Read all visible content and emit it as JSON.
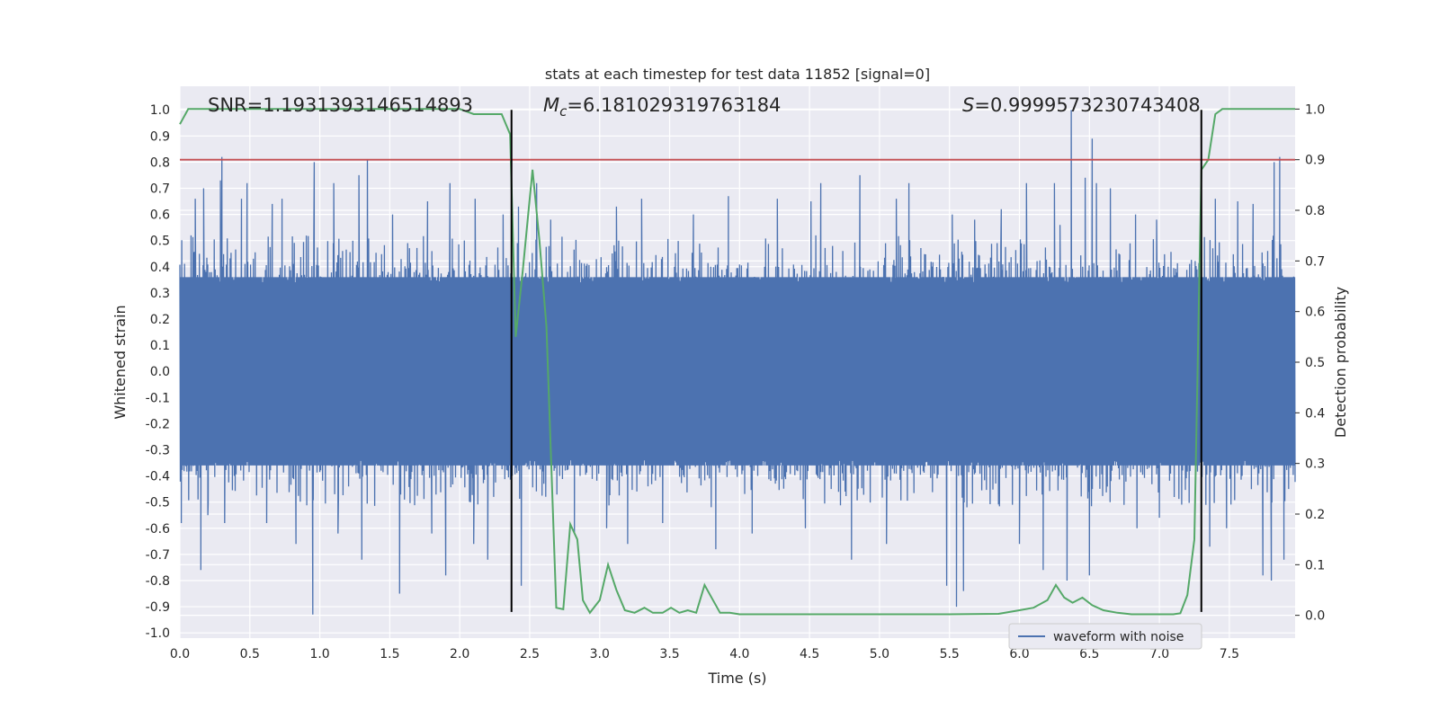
{
  "chart_data": {
    "type": "line",
    "title": "stats at each timestep for test data 11852 [signal=0]",
    "xlabel": "Time (s)",
    "ylabel": "Whitened strain",
    "y2label": "Detection probability",
    "xlim": [
      0.0,
      7.97
    ],
    "ylim": [
      -1.02,
      1.09
    ],
    "y2lim": [
      -0.045,
      1.045
    ],
    "xticks": [
      "0.0",
      "0.5",
      "1.0",
      "1.5",
      "2.0",
      "2.5",
      "3.0",
      "3.5",
      "4.0",
      "4.5",
      "5.0",
      "5.5",
      "6.0",
      "6.5",
      "7.0",
      "7.5"
    ],
    "yticks": [
      "1.0",
      "0.9",
      "0.8",
      "0.7",
      "0.6",
      "0.5",
      "0.4",
      "0.3",
      "0.2",
      "0.1",
      "0.0",
      "-0.1",
      "-0.2",
      "-0.3",
      "-0.4",
      "-0.5",
      "-0.6",
      "-0.7",
      "-0.8",
      "-0.9",
      "-1.0"
    ],
    "y2ticks": [
      "1.0",
      "0.9",
      "0.8",
      "0.7",
      "0.6",
      "0.5",
      "0.4",
      "0.3",
      "0.2",
      "0.1",
      "0.0"
    ],
    "annotations": {
      "snr": "SNR=1.1931393146514893",
      "mc_symbol": "M",
      "mc_sub": "c",
      "mc_value": "=6.181029319763184",
      "s_symbol": "S",
      "s_value": "=0.9999573230743408"
    },
    "threshold_y2": 0.9,
    "vertical_lines_x": [
      2.37,
      7.3
    ],
    "vertical_lines_range": [
      -0.92,
      1.0
    ],
    "waveform": {
      "name": "waveform with noise",
      "color": "#4c72b0",
      "x_range": [
        0.0,
        7.97
      ],
      "core_amplitude": 0.34,
      "peaks": [
        {
          "x": 0.08,
          "y": 0.52
        },
        {
          "x": 0.11,
          "y": 0.66
        },
        {
          "x": 0.17,
          "y": 0.7
        },
        {
          "x": 0.29,
          "y": 0.73
        },
        {
          "x": 0.3,
          "y": 0.82
        },
        {
          "x": 0.44,
          "y": 0.66
        },
        {
          "x": 0.48,
          "y": 0.72
        },
        {
          "x": 0.66,
          "y": 0.64
        },
        {
          "x": 0.73,
          "y": 0.66
        },
        {
          "x": 0.96,
          "y": 0.8
        },
        {
          "x": 1.1,
          "y": 0.72
        },
        {
          "x": 1.28,
          "y": 0.75
        },
        {
          "x": 1.34,
          "y": 0.81
        },
        {
          "x": 1.52,
          "y": 0.6
        },
        {
          "x": 1.77,
          "y": 0.65
        },
        {
          "x": 1.93,
          "y": 0.72
        },
        {
          "x": 2.11,
          "y": 0.66
        },
        {
          "x": 2.31,
          "y": 0.6
        },
        {
          "x": 2.42,
          "y": 0.63
        },
        {
          "x": 2.55,
          "y": 0.72
        },
        {
          "x": 2.65,
          "y": 0.58
        },
        {
          "x": 3.12,
          "y": 0.63
        },
        {
          "x": 3.3,
          "y": 0.66
        },
        {
          "x": 3.67,
          "y": 0.6
        },
        {
          "x": 3.92,
          "y": 0.67
        },
        {
          "x": 4.27,
          "y": 0.66
        },
        {
          "x": 4.51,
          "y": 0.65
        },
        {
          "x": 4.58,
          "y": 0.72
        },
        {
          "x": 4.86,
          "y": 0.75
        },
        {
          "x": 5.12,
          "y": 0.66
        },
        {
          "x": 5.21,
          "y": 0.72
        },
        {
          "x": 5.52,
          "y": 0.6
        },
        {
          "x": 5.68,
          "y": 0.58
        },
        {
          "x": 5.87,
          "y": 0.62
        },
        {
          "x": 6.05,
          "y": 0.72
        },
        {
          "x": 6.25,
          "y": 0.72
        },
        {
          "x": 6.29,
          "y": 0.56
        },
        {
          "x": 6.37,
          "y": 1.0
        },
        {
          "x": 6.47,
          "y": 0.74
        },
        {
          "x": 6.52,
          "y": 0.89
        },
        {
          "x": 6.55,
          "y": 0.72
        },
        {
          "x": 6.65,
          "y": 0.7
        },
        {
          "x": 6.83,
          "y": 0.6
        },
        {
          "x": 6.98,
          "y": 0.58
        },
        {
          "x": 7.4,
          "y": 0.66
        },
        {
          "x": 7.56,
          "y": 0.65
        },
        {
          "x": 7.67,
          "y": 0.64
        },
        {
          "x": 7.82,
          "y": 0.8
        },
        {
          "x": 7.86,
          "y": 0.82
        }
      ],
      "troughs": [
        {
          "x": 0.01,
          "y": -0.58
        },
        {
          "x": 0.15,
          "y": -0.76
        },
        {
          "x": 0.2,
          "y": -0.55
        },
        {
          "x": 0.32,
          "y": -0.58
        },
        {
          "x": 0.62,
          "y": -0.58
        },
        {
          "x": 0.83,
          "y": -0.66
        },
        {
          "x": 0.95,
          "y": -0.93
        },
        {
          "x": 1.13,
          "y": -0.62
        },
        {
          "x": 1.3,
          "y": -0.72
        },
        {
          "x": 1.57,
          "y": -0.85
        },
        {
          "x": 1.8,
          "y": -0.62
        },
        {
          "x": 1.9,
          "y": -0.78
        },
        {
          "x": 2.1,
          "y": -0.66
        },
        {
          "x": 2.2,
          "y": -0.72
        },
        {
          "x": 2.44,
          "y": -0.82
        },
        {
          "x": 2.82,
          "y": -0.62
        },
        {
          "x": 3.05,
          "y": -0.6
        },
        {
          "x": 3.2,
          "y": -0.66
        },
        {
          "x": 3.45,
          "y": -0.58
        },
        {
          "x": 3.83,
          "y": -0.68
        },
        {
          "x": 4.09,
          "y": -0.62
        },
        {
          "x": 4.47,
          "y": -0.6
        },
        {
          "x": 4.8,
          "y": -0.72
        },
        {
          "x": 5.05,
          "y": -0.66
        },
        {
          "x": 5.48,
          "y": -0.82
        },
        {
          "x": 5.55,
          "y": -0.9
        },
        {
          "x": 5.6,
          "y": -0.84
        },
        {
          "x": 6.0,
          "y": -0.66
        },
        {
          "x": 6.17,
          "y": -0.76
        },
        {
          "x": 6.34,
          "y": -0.8
        },
        {
          "x": 6.5,
          "y": -0.78
        },
        {
          "x": 6.84,
          "y": -0.6
        },
        {
          "x": 7.0,
          "y": -0.56
        },
        {
          "x": 7.36,
          "y": -0.67
        },
        {
          "x": 7.48,
          "y": -0.6
        },
        {
          "x": 7.74,
          "y": -0.78
        },
        {
          "x": 7.8,
          "y": -0.8
        },
        {
          "x": 7.89,
          "y": -0.72
        }
      ]
    },
    "probability": {
      "name": "Detection probability",
      "color": "#55a868",
      "x": [
        0.0,
        0.06,
        0.5,
        1.0,
        1.5,
        2.0,
        2.1,
        2.2,
        2.25,
        2.3,
        2.36,
        2.4,
        2.45,
        2.52,
        2.57,
        2.62,
        2.69,
        2.74,
        2.79,
        2.84,
        2.88,
        2.93,
        3.0,
        3.06,
        3.12,
        3.18,
        3.25,
        3.32,
        3.38,
        3.45,
        3.51,
        3.57,
        3.63,
        3.69,
        3.75,
        3.81,
        3.86,
        3.93,
        4.0,
        4.1,
        4.3,
        4.6,
        4.8,
        5.0,
        5.5,
        5.85,
        6.0,
        6.1,
        6.2,
        6.26,
        6.32,
        6.38,
        6.45,
        6.52,
        6.6,
        6.7,
        6.8,
        6.9,
        7.0,
        7.1,
        7.15,
        7.2,
        7.25,
        7.3,
        7.35,
        7.4,
        7.45,
        7.5,
        7.6,
        7.97
      ],
      "y": [
        0.97,
        1.0,
        1.0,
        1.0,
        1.0,
        1.0,
        0.99,
        0.99,
        0.99,
        0.99,
        0.95,
        0.55,
        0.68,
        0.88,
        0.74,
        0.57,
        0.015,
        0.012,
        0.18,
        0.15,
        0.03,
        0.005,
        0.03,
        0.1,
        0.05,
        0.01,
        0.005,
        0.015,
        0.005,
        0.005,
        0.015,
        0.005,
        0.01,
        0.005,
        0.06,
        0.03,
        0.005,
        0.005,
        0.002,
        0.002,
        0.002,
        0.002,
        0.002,
        0.002,
        0.002,
        0.003,
        0.01,
        0.015,
        0.03,
        0.06,
        0.035,
        0.025,
        0.035,
        0.02,
        0.01,
        0.005,
        0.002,
        0.002,
        0.002,
        0.002,
        0.004,
        0.04,
        0.15,
        0.88,
        0.9,
        0.99,
        1.0,
        1.0,
        1.0,
        1.0
      ]
    },
    "legend": {
      "entries": [
        "waveform with noise"
      ],
      "position": "lower right"
    },
    "grid": true,
    "colors": {
      "background": "#eaeaf2",
      "grid": "#ffffff",
      "threshold": "#c44e52",
      "vline": "#000000",
      "text": "#262626"
    }
  }
}
